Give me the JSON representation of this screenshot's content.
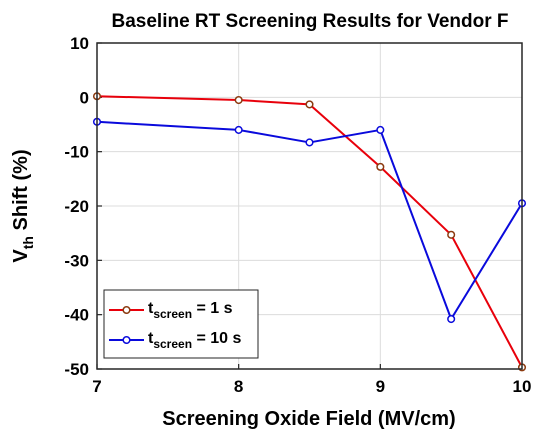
{
  "chart_data": {
    "type": "line",
    "title": "Baseline RT Screening Results for Vendor F",
    "xlabel": "Screening Oxide Field (MV/cm)",
    "ylabel_main": "V",
    "ylabel_sub": "th",
    "ylabel_rest": " Shift (%)",
    "xlim": [
      7,
      10
    ],
    "ylim": [
      -50,
      10
    ],
    "xticks": [
      7,
      8,
      9,
      10
    ],
    "yticks": [
      10,
      0,
      -10,
      -20,
      -30,
      -40,
      -50
    ],
    "grid": true,
    "legend_position": "bottom-left",
    "series": [
      {
        "name_main": "t",
        "name_sub": "screen",
        "name_rest": " = 1 s",
        "color": "#e8000b",
        "marker_color": "#8b3a0f",
        "x": [
          7,
          8,
          8.5,
          9,
          9.5,
          10
        ],
        "y": [
          0.2,
          -0.5,
          -1.3,
          -12.8,
          -25.3,
          -49.7
        ]
      },
      {
        "name_main": "t",
        "name_sub": "screen",
        "name_rest": " = 10 s",
        "color": "#0a0adc",
        "marker_color": "#0a0adc",
        "x": [
          7,
          8,
          8.5,
          9,
          9.5,
          10
        ],
        "y": [
          -4.5,
          -6.0,
          -8.3,
          -6.0,
          -40.8,
          -19.5
        ]
      }
    ]
  }
}
